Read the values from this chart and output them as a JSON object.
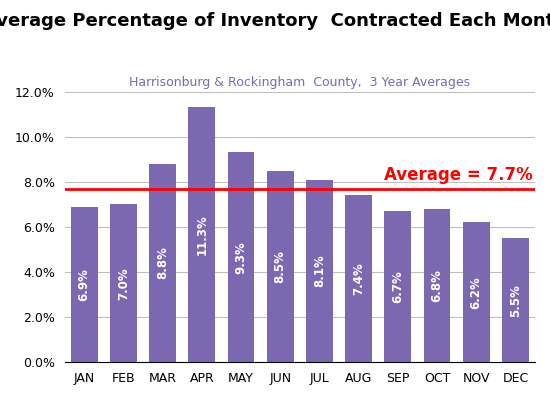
{
  "title": "Average Percentage of Inventory  Contracted Each Month",
  "subtitle": "Harrisonburg & Rockingham  County,  3 Year Averages",
  "months": [
    "JAN",
    "FEB",
    "MAR",
    "APR",
    "MAY",
    "JUN",
    "JUL",
    "AUG",
    "SEP",
    "OCT",
    "NOV",
    "DEC"
  ],
  "values": [
    6.9,
    7.0,
    8.8,
    11.3,
    9.3,
    8.5,
    8.1,
    7.4,
    6.7,
    6.8,
    6.2,
    5.5
  ],
  "bar_color": "#7B68B0",
  "average_value": 7.7,
  "average_label": "Average = 7.7%",
  "average_line_color": "#FF0000",
  "ylim": [
    0,
    12.0
  ],
  "yticks": [
    0.0,
    2.0,
    4.0,
    6.0,
    8.0,
    10.0,
    12.0
  ],
  "tick_fontsize": 9,
  "title_fontsize": 13,
  "subtitle_fontsize": 9,
  "subtitle_color": "#7B68B0",
  "bar_label_color": "#FFFFFF",
  "bar_label_fontsize": 8.5,
  "average_label_color": "#FF0000",
  "average_label_fontsize": 12
}
